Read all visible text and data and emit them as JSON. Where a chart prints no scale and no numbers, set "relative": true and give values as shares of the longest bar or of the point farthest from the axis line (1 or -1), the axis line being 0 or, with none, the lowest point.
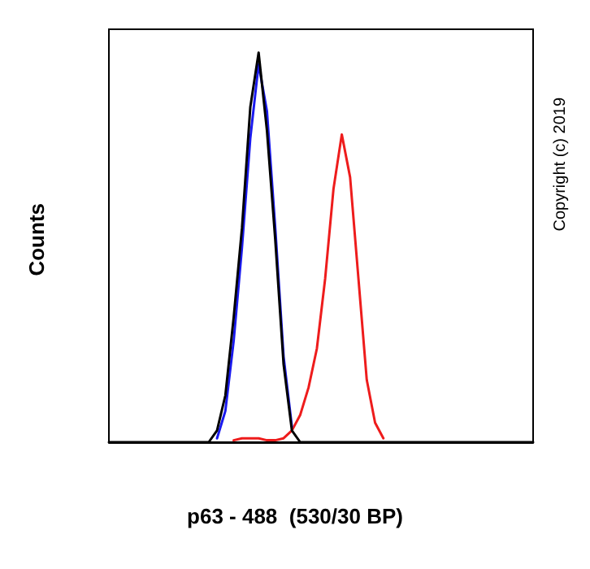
{
  "chart_data": {
    "type": "line",
    "relative": true,
    "xlabel": "p63 - 488  (530/30 BP)",
    "ylabel": "Counts",
    "annotations": [
      "Copyright (c) 2019"
    ],
    "grid": false,
    "line_style": "solid",
    "categories": [
      null,
      null,
      null,
      null,
      null,
      null,
      null,
      null,
      null,
      null,
      null,
      null,
      null,
      null,
      null,
      null,
      null,
      null,
      null,
      null,
      null,
      null,
      null,
      null,
      null,
      null,
      null,
      null,
      null,
      null,
      null,
      null,
      null,
      null,
      null,
      null,
      null,
      null,
      null,
      null,
      null,
      null,
      null,
      null,
      null,
      null,
      null,
      null,
      null,
      null,
      null,
      null
    ],
    "series": [
      {
        "color": "#ee1c1c",
        "values": [
          null,
          null,
          null,
          null,
          null,
          null,
          null,
          null,
          null,
          null,
          null,
          null,
          null,
          null,
          null,
          0.005,
          0.01,
          0.01,
          0.01,
          0.005,
          0.005,
          0.01,
          0.03,
          0.07,
          0.14,
          0.24,
          0.42,
          0.65,
          0.79,
          0.68,
          0.42,
          0.16,
          0.05,
          0.01,
          null,
          null,
          null,
          null,
          null,
          null,
          null,
          null,
          null,
          null,
          null,
          null,
          null,
          null,
          null,
          null,
          null,
          null
        ]
      },
      {
        "color": "#1a1aee",
        "values": [
          null,
          null,
          null,
          null,
          null,
          null,
          null,
          null,
          null,
          null,
          null,
          null,
          null,
          0.01,
          0.08,
          0.26,
          0.5,
          0.78,
          0.97,
          0.85,
          0.55,
          0.22,
          0.04,
          null,
          null,
          null,
          null,
          null,
          null,
          null,
          null,
          null,
          null,
          null,
          null,
          null,
          null,
          null,
          null,
          null,
          null,
          null,
          null,
          null,
          null,
          null,
          null,
          null,
          null,
          null,
          null,
          null
        ]
      },
      {
        "color": "#000000",
        "values": [
          0,
          0,
          0,
          0,
          0,
          0,
          0,
          0,
          0,
          0,
          0,
          0,
          0,
          0.03,
          0.12,
          0.32,
          0.55,
          0.86,
          1,
          0.8,
          0.52,
          0.2,
          0.03,
          0,
          0,
          0,
          0,
          0,
          0,
          0,
          0,
          0,
          0,
          0,
          0,
          0,
          0,
          0,
          0,
          0,
          0,
          0,
          0,
          0,
          0,
          0,
          0,
          0,
          0,
          0,
          0,
          0
        ]
      }
    ]
  }
}
